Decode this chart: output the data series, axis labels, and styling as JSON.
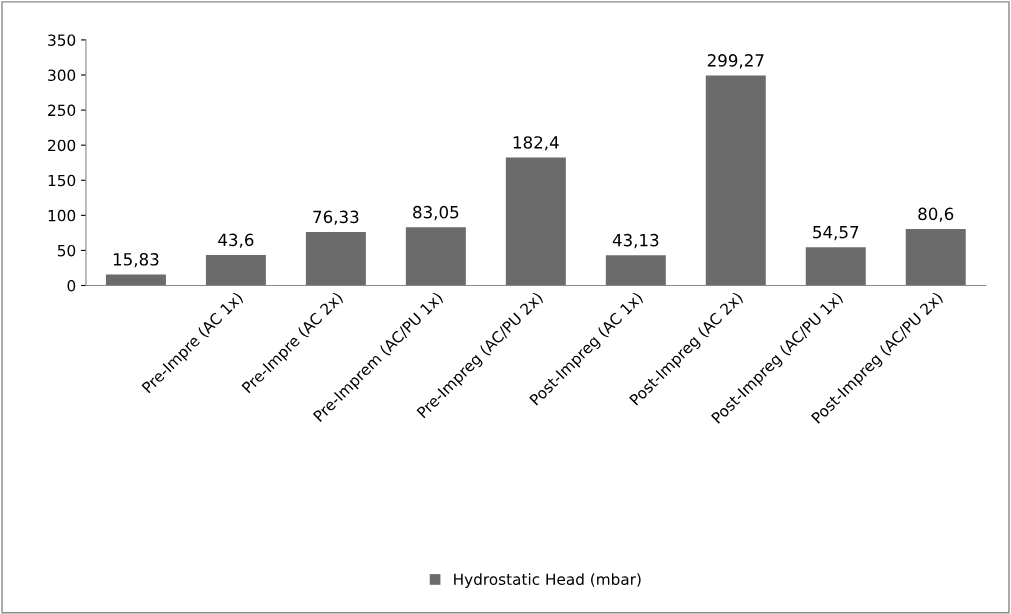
{
  "chart_data": {
    "type": "bar",
    "categories": [
      null,
      "Pre-Impre (AC 1x)",
      "Pre-Impre (AC 2x)",
      "Pre-Imprem (AC/PU 1x)",
      "Pre-Impreg (AC/PU 2x)",
      "Post-Impreg (AC 1x)",
      "Post-Impreg (AC 2x)",
      "Post-Impreg (AC/PU 1x)",
      "Post-Impreg (AC/PU 2x)"
    ],
    "series": [
      {
        "name": "Hydrostatic Head (mbar)",
        "color": "#6b6b6b",
        "values": [
          15.83,
          43.6,
          76.33,
          83.05,
          182.4,
          43.13,
          299.27,
          54.57,
          80.6
        ],
        "value_labels": [
          "15,83",
          "43,6",
          "76,33",
          "83,05",
          "182,4",
          "43,13",
          "299,27",
          "54,57",
          "80,6"
        ]
      }
    ],
    "ylim": [
      0,
      350
    ],
    "yticks": [
      0,
      50,
      100,
      150,
      200,
      250,
      300,
      350
    ],
    "grid": false,
    "legend": "bottom"
  }
}
